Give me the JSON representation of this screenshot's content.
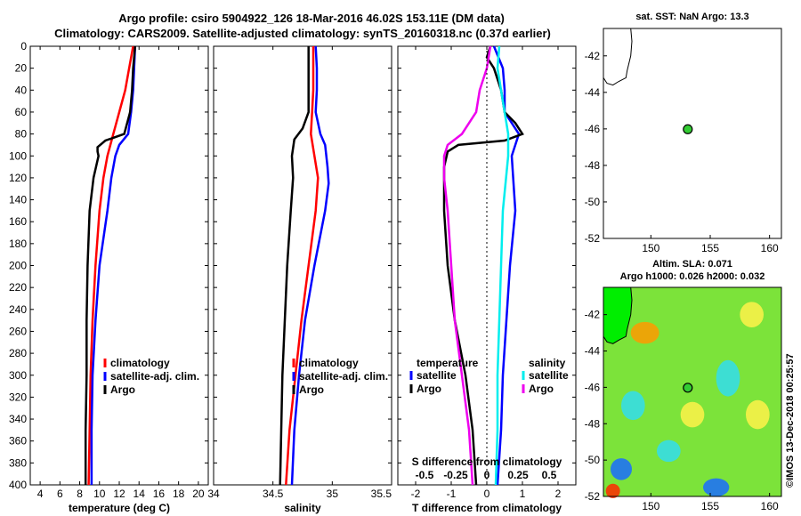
{
  "title": {
    "line1": "Argo profile: csiro 5904922_126 18-Mar-2016 46.02S 153.11E (DM data)",
    "line2": "Climatology: CARS2009. Satellite-adjusted climatology: synTS_20160318.nc (0.37d earlier)"
  },
  "colors": {
    "climatology": "#ff0000",
    "satellite": "#0000ff",
    "argo": "#000000",
    "sal_sat": "#00eeee",
    "sal_argo": "#ee00ee",
    "land": "#00ee00"
  },
  "chart_data": [
    {
      "type": "line",
      "id": "temp",
      "xlabel": "temperature (deg C)",
      "ylabel": "",
      "xlim": [
        3,
        21
      ],
      "ylim": [
        0,
        400
      ],
      "x_ticks": [
        4,
        6,
        8,
        10,
        12,
        14,
        16,
        18,
        20
      ],
      "y_ticks": [
        0,
        20,
        40,
        60,
        80,
        100,
        120,
        140,
        160,
        180,
        200,
        220,
        240,
        260,
        280,
        300,
        320,
        340,
        360,
        380,
        400
      ],
      "legend": [
        "climatology",
        "satellite-adj. clim.",
        "Argo"
      ],
      "series": [
        {
          "name": "climatology",
          "color_key": "climatology",
          "depth": [
            0,
            20,
            40,
            60,
            80,
            100,
            120,
            150,
            200,
            250,
            300,
            350,
            400
          ],
          "values": [
            13.4,
            13.0,
            12.6,
            12.0,
            11.4,
            10.8,
            10.4,
            10.0,
            9.6,
            9.3,
            9.1,
            9.0,
            8.9
          ]
        },
        {
          "name": "satellite-adj. clim.",
          "color_key": "satellite",
          "depth": [
            0,
            20,
            40,
            60,
            80,
            90,
            100,
            120,
            150,
            200,
            250,
            300,
            350,
            400
          ],
          "values": [
            13.6,
            13.5,
            13.4,
            13.2,
            12.9,
            12.0,
            11.6,
            11.2,
            10.8,
            10.0,
            9.6,
            9.3,
            9.2,
            9.2
          ]
        },
        {
          "name": "Argo",
          "color_key": "argo",
          "depth": [
            0,
            20,
            40,
            60,
            80,
            86,
            92,
            96,
            100,
            120,
            150,
            200,
            250,
            300,
            350,
            400
          ],
          "values": [
            13.6,
            13.4,
            13.3,
            13.1,
            12.5,
            10.6,
            9.8,
            9.8,
            9.9,
            9.4,
            9.0,
            8.8,
            8.7,
            8.7,
            8.6,
            8.6
          ]
        }
      ]
    },
    {
      "type": "line",
      "id": "sal",
      "xlabel": "salinity",
      "xlim": [
        34,
        35.5
      ],
      "ylim": [
        0,
        400
      ],
      "x_tick_labels": [
        {
          "v": 34,
          "label": "34"
        },
        {
          "v": 34.5,
          "label": "34.5"
        },
        {
          "v": 35,
          "label": "35"
        },
        {
          "v": 35.5,
          "label": "35.5"
        }
      ],
      "legend": [
        "climatology",
        "satellite-adj. clim.",
        "Argo"
      ],
      "series": [
        {
          "name": "climatology",
          "color_key": "climatology",
          "depth": [
            0,
            20,
            40,
            60,
            80,
            100,
            120,
            150,
            200,
            250,
            300,
            350,
            400
          ],
          "values": [
            34.84,
            34.84,
            34.84,
            34.83,
            34.82,
            34.85,
            34.88,
            34.86,
            34.8,
            34.74,
            34.69,
            34.64,
            34.61
          ]
        },
        {
          "name": "satellite-adj. clim.",
          "color_key": "satellite",
          "depth": [
            0,
            20,
            40,
            60,
            80,
            90,
            110,
            125,
            150,
            200,
            250,
            300,
            350,
            400
          ],
          "values": [
            34.86,
            34.87,
            34.87,
            34.86,
            34.9,
            34.94,
            34.96,
            34.97,
            34.94,
            34.85,
            34.77,
            34.72,
            34.68,
            34.66
          ]
        },
        {
          "name": "Argo",
          "color_key": "argo",
          "depth": [
            0,
            20,
            40,
            60,
            75,
            85,
            100,
            120,
            150,
            200,
            250,
            300,
            350,
            400
          ],
          "values": [
            34.8,
            34.8,
            34.8,
            34.8,
            34.75,
            34.68,
            34.66,
            34.67,
            34.65,
            34.62,
            34.6,
            34.58,
            34.57,
            34.56
          ]
        }
      ]
    },
    {
      "type": "line",
      "id": "diff",
      "xlabel": "T difference from climatology",
      "xlabel_top": "S difference from climatology",
      "xlim": [
        -2.5,
        2.5
      ],
      "ylim": [
        0,
        400
      ],
      "x_ticks": [
        -2,
        -1,
        0,
        1,
        2
      ],
      "s_ticks": [
        {
          "v": -1.75,
          "label": "-0.5"
        },
        {
          "v": -0.875,
          "label": "-0.25"
        },
        {
          "v": 0,
          "label": "0"
        },
        {
          "v": 0.875,
          "label": "0.25"
        },
        {
          "v": 1.75,
          "label": "0.5"
        }
      ],
      "legend_temp_title": "temperature",
      "legend_sal_title": "salinity",
      "legend_temp": [
        "satellite",
        "Argo"
      ],
      "legend_sal": [
        "satellite",
        "Argo"
      ],
      "series": [
        {
          "name": "T satellite",
          "color_key": "satellite",
          "depth": [
            0,
            20,
            40,
            60,
            80,
            100,
            150,
            200,
            250,
            300,
            350,
            400
          ],
          "values": [
            0.2,
            0.45,
            0.5,
            0.5,
            0.9,
            0.7,
            0.8,
            0.65,
            0.55,
            0.45,
            0.4,
            0.3
          ]
        },
        {
          "name": "T Argo",
          "color_key": "argo",
          "depth": [
            0,
            10,
            20,
            40,
            60,
            70,
            80,
            86,
            90,
            96,
            110,
            150,
            200,
            250,
            300,
            350,
            400
          ],
          "values": [
            0.1,
            0.0,
            0.2,
            0.4,
            0.5,
            0.8,
            1.0,
            0.5,
            -0.8,
            -1.1,
            -1.2,
            -1.2,
            -1.1,
            -0.9,
            -0.6,
            -0.4,
            -0.3
          ]
        },
        {
          "name": "S satellite",
          "color_key": "sal_sat",
          "depth": [
            0,
            20,
            40,
            60,
            80,
            100,
            150,
            200,
            250,
            300,
            350,
            400
          ],
          "values": [
            0.35,
            0.3,
            0.4,
            0.5,
            0.6,
            0.6,
            0.45,
            0.4,
            0.35,
            0.3,
            0.3,
            0.25
          ]
        },
        {
          "name": "S Argo",
          "color_key": "sal_argo",
          "depth": [
            0,
            20,
            40,
            60,
            80,
            90,
            100,
            120,
            150,
            200,
            250,
            300,
            350,
            400
          ],
          "values": [
            0.1,
            0.0,
            -0.2,
            -0.3,
            -0.7,
            -1.1,
            -1.2,
            -1.2,
            -1.1,
            -1.0,
            -0.9,
            -0.7,
            -0.5,
            -0.4
          ]
        }
      ]
    },
    {
      "type": "scatter",
      "id": "map_sst",
      "title": "sat. SST: NaN Argo: 13.3",
      "xlim": [
        146,
        161
      ],
      "ylim": [
        -52,
        -40.5
      ],
      "x_ticks": [
        150,
        155,
        160
      ],
      "y_ticks": [
        -42,
        -44,
        -46,
        -48,
        -50,
        -52
      ],
      "points": [
        {
          "lon": 153.11,
          "lat": -46.02
        }
      ]
    },
    {
      "type": "heatmap",
      "id": "map_sla",
      "title": "Altim. SLA: 0.071",
      "subtitle": "Argo h1000: 0.026 h2000: 0.032",
      "xlim": [
        146,
        161
      ],
      "ylim": [
        -52,
        -40.5
      ],
      "x_ticks": [
        150,
        155,
        160
      ],
      "y_ticks": [
        -42,
        -44,
        -46,
        -48,
        -50,
        -52
      ],
      "points": [
        {
          "lon": 153.11,
          "lat": -46.02
        }
      ],
      "blobs": [
        {
          "lon": 149.5,
          "lat": -43.0,
          "rx": 1.2,
          "ry": 0.6,
          "level": "orange"
        },
        {
          "lon": 158.5,
          "lat": -42.0,
          "rx": 1.0,
          "ry": 0.7,
          "level": "yellow"
        },
        {
          "lon": 156.5,
          "lat": -45.5,
          "rx": 1.0,
          "ry": 1.0,
          "level": "cyan"
        },
        {
          "lon": 148.5,
          "lat": -47.0,
          "rx": 1.0,
          "ry": 0.8,
          "level": "cyan"
        },
        {
          "lon": 151.5,
          "lat": -49.5,
          "rx": 1.0,
          "ry": 0.6,
          "level": "cyan"
        },
        {
          "lon": 147.5,
          "lat": -50.5,
          "rx": 0.9,
          "ry": 0.6,
          "level": "blue"
        },
        {
          "lon": 155.5,
          "lat": -51.5,
          "rx": 1.1,
          "ry": 0.5,
          "level": "blue"
        },
        {
          "lon": 159.0,
          "lat": -47.5,
          "rx": 1.0,
          "ry": 0.8,
          "level": "yellow"
        },
        {
          "lon": 153.5,
          "lat": -47.5,
          "rx": 1.0,
          "ry": 0.7,
          "level": "yellow"
        },
        {
          "lon": 146.8,
          "lat": -51.7,
          "rx": 0.6,
          "ry": 0.4,
          "level": "red"
        }
      ]
    }
  ],
  "watermark": "©IMOS 13-Dec-2018 00:25:57"
}
